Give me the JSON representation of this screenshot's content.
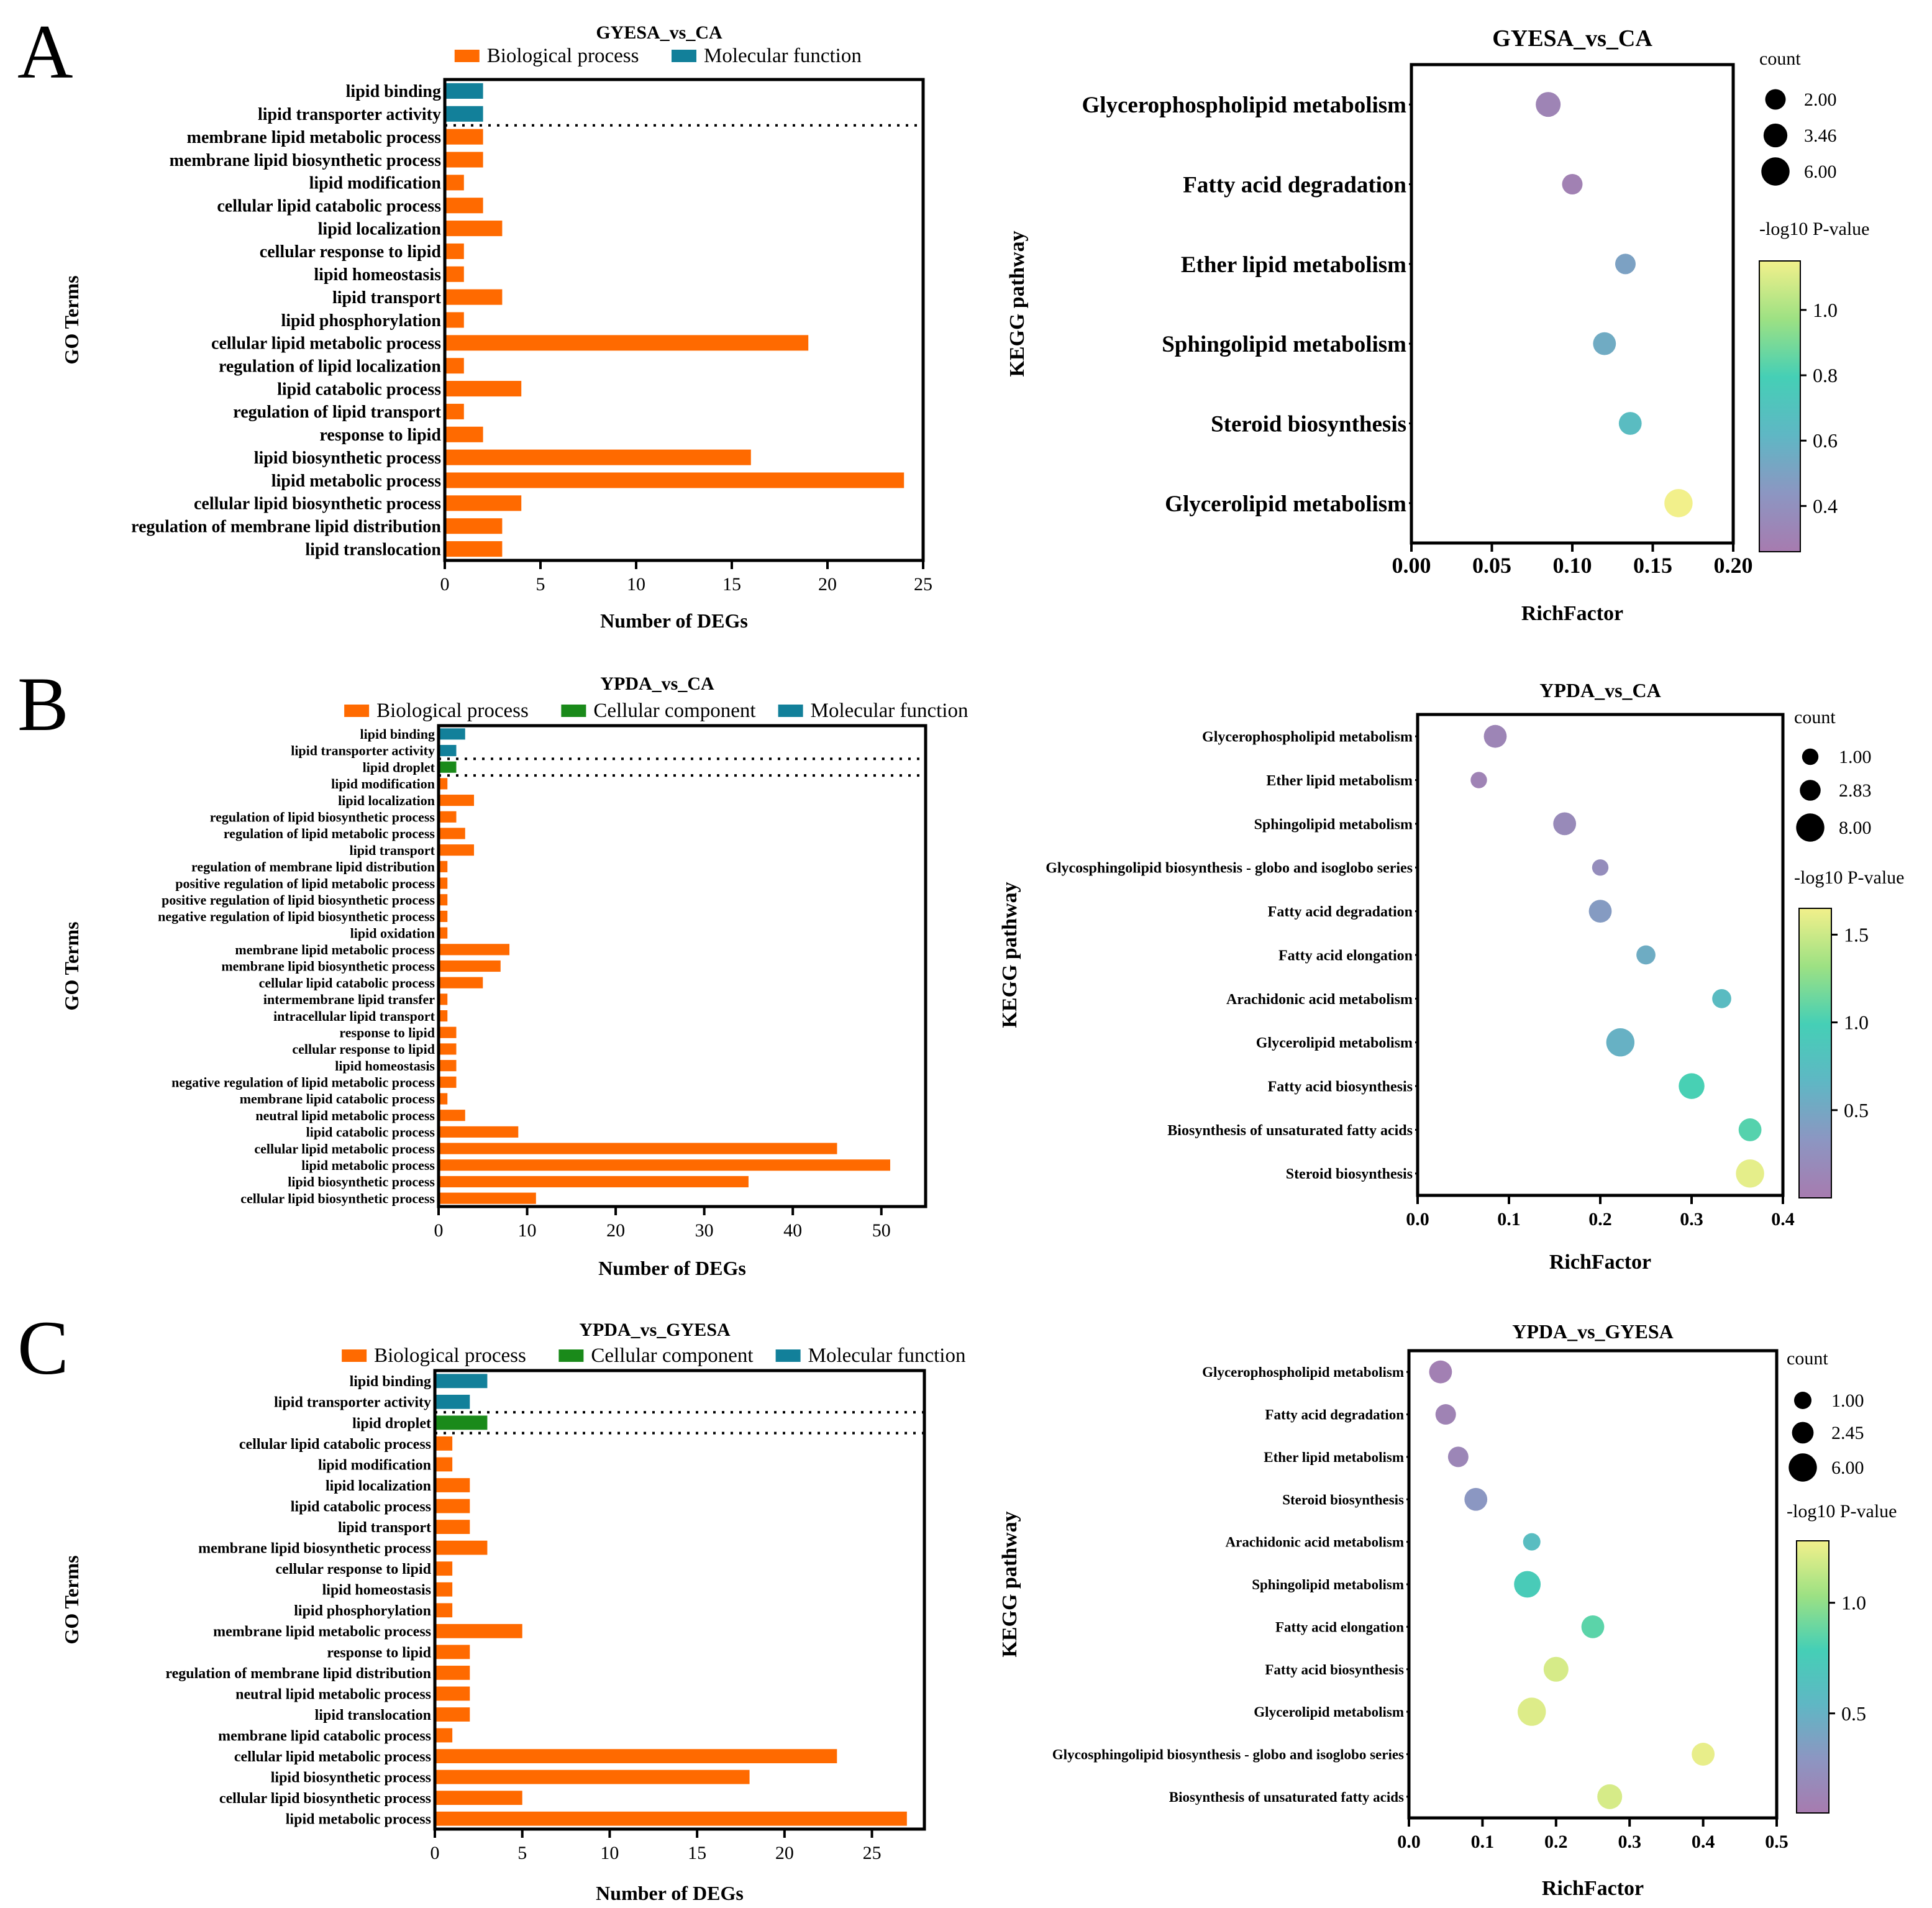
{
  "panels": [
    {
      "label": "A"
    },
    {
      "label": "B"
    },
    {
      "label": "C"
    }
  ],
  "colors": {
    "biological_process": "#FF6A00",
    "cellular_component": "#1A8A1A",
    "molecular_function": "#12809A",
    "colormap": [
      "#A77BAF",
      "#8C96C2",
      "#5FB7C4",
      "#45CFB6",
      "#9DE183",
      "#F2F08B"
    ]
  },
  "chart_data": [
    {
      "type": "bar",
      "orientation": "horizontal",
      "title": "GYESA_vs_CA",
      "xlabel": "Number of DEGs",
      "ylabel": "GO Terms",
      "xlim": [
        0,
        25
      ],
      "xticks": [
        0,
        5,
        10,
        15,
        20,
        25
      ],
      "legend": [
        {
          "name": "Biological process",
          "key": "biological_process"
        },
        {
          "name": "Molecular function",
          "key": "molecular_function"
        }
      ],
      "group_separators_after": [
        2
      ],
      "categories": [
        "lipid binding",
        "lipid transporter activity",
        "membrane lipid metabolic process",
        "membrane lipid biosynthetic process",
        "lipid modification",
        "cellular lipid catabolic process",
        "lipid localization",
        "cellular response to lipid",
        "lipid homeostasis",
        "lipid transport",
        "lipid phosphorylation",
        "cellular lipid metabolic process",
        "regulation of lipid localization",
        "lipid catabolic process",
        "regulation of lipid transport",
        "response to lipid",
        "lipid biosynthetic process",
        "lipid metabolic process",
        "cellular lipid biosynthetic process",
        "regulation of membrane lipid distribution",
        "lipid translocation"
      ],
      "values": [
        2,
        2,
        2,
        2,
        1,
        2,
        3,
        1,
        1,
        3,
        1,
        19,
        1,
        4,
        1,
        2,
        16,
        24,
        4,
        3,
        3
      ],
      "groups": [
        "molecular_function",
        "molecular_function",
        "biological_process",
        "biological_process",
        "biological_process",
        "biological_process",
        "biological_process",
        "biological_process",
        "biological_process",
        "biological_process",
        "biological_process",
        "biological_process",
        "biological_process",
        "biological_process",
        "biological_process",
        "biological_process",
        "biological_process",
        "biological_process",
        "biological_process",
        "biological_process",
        "biological_process"
      ]
    },
    {
      "type": "scatter",
      "title": "GYESA_vs_CA",
      "xlabel": "RichFactor",
      "ylabel": "KEGG pathway",
      "xlim": [
        0,
        0.2
      ],
      "xticks": [
        "0.00",
        "0.05",
        "0.10",
        "0.15",
        "0.20"
      ],
      "categories": [
        "Glycerophospholipid metabolism",
        "Fatty acid degradation",
        "Ether lipid metabolism",
        "Sphingolipid metabolism",
        "Steroid biosynthesis",
        "Glycerolipid metabolism"
      ],
      "rich_factor": [
        0.085,
        0.1,
        0.133,
        0.12,
        0.136,
        0.166
      ],
      "count": [
        4,
        2,
        2,
        3,
        3,
        6
      ],
      "neg_log10_p": [
        0.32,
        0.3,
        0.5,
        0.55,
        0.65,
        1.15
      ],
      "size_legend": {
        "title": "count",
        "labels": [
          "2.00",
          "3.46",
          "6.00"
        ],
        "values": [
          2,
          3.46,
          6
        ]
      },
      "color_legend": {
        "title": "-log10 P-value",
        "range": [
          0.26,
          1.15
        ],
        "ticks": [
          "1.0",
          "0.8",
          "0.6",
          "0.4"
        ],
        "tick_values": [
          1.0,
          0.8,
          0.6,
          0.4
        ]
      }
    },
    {
      "type": "bar",
      "orientation": "horizontal",
      "title": "YPDA_vs_CA",
      "xlabel": "Number of DEGs",
      "ylabel": "GO Terms",
      "xlim": [
        0,
        55
      ],
      "xticks": [
        0,
        10,
        20,
        30,
        40,
        50
      ],
      "legend": [
        {
          "name": "Biological process",
          "key": "biological_process"
        },
        {
          "name": "Cellular component",
          "key": "cellular_component"
        },
        {
          "name": "Molecular function",
          "key": "molecular_function"
        }
      ],
      "group_separators_after": [
        2,
        3
      ],
      "categories": [
        "lipid binding",
        "lipid transporter activity",
        "lipid droplet",
        "lipid modification",
        "lipid localization",
        "regulation of lipid biosynthetic process",
        "regulation of lipid metabolic process",
        "lipid transport",
        "regulation of membrane lipid distribution",
        "positive regulation of lipid metabolic process",
        "positive regulation of lipid biosynthetic process",
        "negative regulation of lipid biosynthetic process",
        "lipid oxidation",
        "membrane lipid metabolic process",
        "membrane lipid biosynthetic process",
        "cellular lipid catabolic process",
        "intermembrane lipid transfer",
        "intracellular lipid transport",
        "response to lipid",
        "cellular response to lipid",
        "lipid homeostasis",
        "negative regulation of lipid metabolic process",
        "membrane lipid catabolic process",
        "neutral lipid metabolic process",
        "lipid catabolic process",
        "cellular lipid metabolic process",
        "lipid metabolic process",
        "lipid biosynthetic process",
        "cellular lipid biosynthetic process"
      ],
      "values": [
        3,
        2,
        2,
        1,
        4,
        2,
        3,
        4,
        1,
        1,
        1,
        1,
        1,
        8,
        7,
        5,
        1,
        1,
        2,
        2,
        2,
        2,
        1,
        3,
        9,
        45,
        51,
        35,
        11
      ],
      "groups": [
        "molecular_function",
        "molecular_function",
        "cellular_component",
        "biological_process",
        "biological_process",
        "biological_process",
        "biological_process",
        "biological_process",
        "biological_process",
        "biological_process",
        "biological_process",
        "biological_process",
        "biological_process",
        "biological_process",
        "biological_process",
        "biological_process",
        "biological_process",
        "biological_process",
        "biological_process",
        "biological_process",
        "biological_process",
        "biological_process",
        "biological_process",
        "biological_process",
        "biological_process",
        "biological_process",
        "biological_process",
        "biological_process",
        "biological_process"
      ]
    },
    {
      "type": "scatter",
      "title": "YPDA_vs_CA",
      "xlabel": "RichFactor",
      "ylabel": "KEGG pathway",
      "xlim": [
        0,
        0.4
      ],
      "xticks": [
        "0.0",
        "0.1",
        "0.2",
        "0.3",
        "0.4"
      ],
      "categories": [
        "Glycerophospholipid metabolism",
        "Ether lipid metabolism",
        "Sphingolipid metabolism",
        "Glycosphingolipid biosynthesis - globo and isoglobo series",
        "Fatty acid degradation",
        "Fatty acid elongation",
        "Arachidonic acid metabolism",
        "Glycerolipid metabolism",
        "Fatty acid biosynthesis",
        "Biosynthesis of unsaturated fatty acids",
        "Steroid biosynthesis"
      ],
      "rich_factor": [
        0.085,
        0.067,
        0.161,
        0.2,
        0.2,
        0.25,
        0.333,
        0.222,
        0.3,
        0.364,
        0.364
      ],
      "count": [
        4,
        1,
        4,
        1,
        4,
        2,
        2,
        8,
        6,
        4,
        8
      ],
      "neg_log10_p": [
        0.12,
        0.1,
        0.18,
        0.22,
        0.38,
        0.55,
        0.72,
        0.6,
        1.0,
        1.05,
        1.6
      ],
      "size_legend": {
        "title": "count",
        "labels": [
          "1.00",
          "2.83",
          "8.00"
        ],
        "values": [
          1,
          2.83,
          8
        ]
      },
      "color_legend": {
        "title": "-log10 P-value",
        "range": [
          0.0,
          1.65
        ],
        "ticks": [
          "1.5",
          "1.0",
          "0.5"
        ],
        "tick_values": [
          1.5,
          1.0,
          0.5
        ]
      }
    },
    {
      "type": "bar",
      "orientation": "horizontal",
      "title": "YPDA_vs_GYESA",
      "xlabel": "Number of DEGs",
      "ylabel": "GO Terms",
      "xlim": [
        0,
        28
      ],
      "xticks": [
        0,
        5,
        10,
        15,
        20,
        25
      ],
      "legend": [
        {
          "name": "Biological process",
          "key": "biological_process"
        },
        {
          "name": "Cellular component",
          "key": "cellular_component"
        },
        {
          "name": "Molecular function",
          "key": "molecular_function"
        }
      ],
      "group_separators_after": [
        2,
        3
      ],
      "categories": [
        "lipid binding",
        "lipid transporter activity",
        "lipid droplet",
        "cellular lipid catabolic process",
        "lipid modification",
        "lipid localization",
        "lipid catabolic process",
        "lipid transport",
        "membrane lipid biosynthetic process",
        "cellular response to lipid",
        "lipid homeostasis",
        "lipid phosphorylation",
        "membrane lipid metabolic process",
        "response to lipid",
        "regulation of membrane lipid distribution",
        "neutral lipid metabolic process",
        "lipid translocation",
        "membrane lipid catabolic process",
        "cellular lipid metabolic process",
        "lipid biosynthetic process",
        "cellular lipid biosynthetic process",
        "lipid metabolic process"
      ],
      "values": [
        3,
        2,
        3,
        1,
        1,
        2,
        2,
        2,
        3,
        1,
        1,
        1,
        5,
        2,
        2,
        2,
        2,
        1,
        23,
        18,
        5,
        27
      ],
      "groups": [
        "molecular_function",
        "molecular_function",
        "cellular_component",
        "biological_process",
        "biological_process",
        "biological_process",
        "biological_process",
        "biological_process",
        "biological_process",
        "biological_process",
        "biological_process",
        "biological_process",
        "biological_process",
        "biological_process",
        "biological_process",
        "biological_process",
        "biological_process",
        "biological_process",
        "biological_process",
        "biological_process",
        "biological_process",
        "biological_process"
      ]
    },
    {
      "type": "scatter",
      "title": "YPDA_vs_GYESA",
      "xlabel": "RichFactor",
      "ylabel": "KEGG pathway",
      "xlim": [
        0,
        0.5
      ],
      "xticks": [
        "0.0",
        "0.1",
        "0.2",
        "0.3",
        "0.4",
        "0.5"
      ],
      "categories": [
        "Glycerophospholipid metabolism",
        "Fatty acid degradation",
        "Ether lipid metabolism",
        "Steroid biosynthesis",
        "Arachidonic acid metabolism",
        "Sphingolipid metabolism",
        "Fatty acid elongation",
        "Fatty acid biosynthesis",
        "Glycerolipid metabolism",
        "Glycosphingolipid biosynthesis - globo and isoglobo series",
        "Biosynthesis of unsaturated fatty acids"
      ],
      "rich_factor": [
        0.043,
        0.05,
        0.067,
        0.091,
        0.167,
        0.161,
        0.25,
        0.2,
        0.167,
        0.4,
        0.273
      ],
      "count": [
        3,
        2,
        2,
        3,
        1,
        5,
        3,
        4,
        6,
        3,
        4
      ],
      "neg_log10_p": [
        0.1,
        0.12,
        0.15,
        0.3,
        0.6,
        0.75,
        0.85,
        1.2,
        1.22,
        1.25,
        1.2
      ],
      "size_legend": {
        "title": "count",
        "labels": [
          "1.00",
          "2.45",
          "6.00"
        ],
        "values": [
          1,
          2.45,
          6
        ]
      },
      "color_legend": {
        "title": "-log10 P-value",
        "range": [
          0.05,
          1.28
        ],
        "ticks": [
          "1.0",
          "0.5"
        ],
        "tick_values": [
          1.0,
          0.5
        ]
      }
    }
  ]
}
